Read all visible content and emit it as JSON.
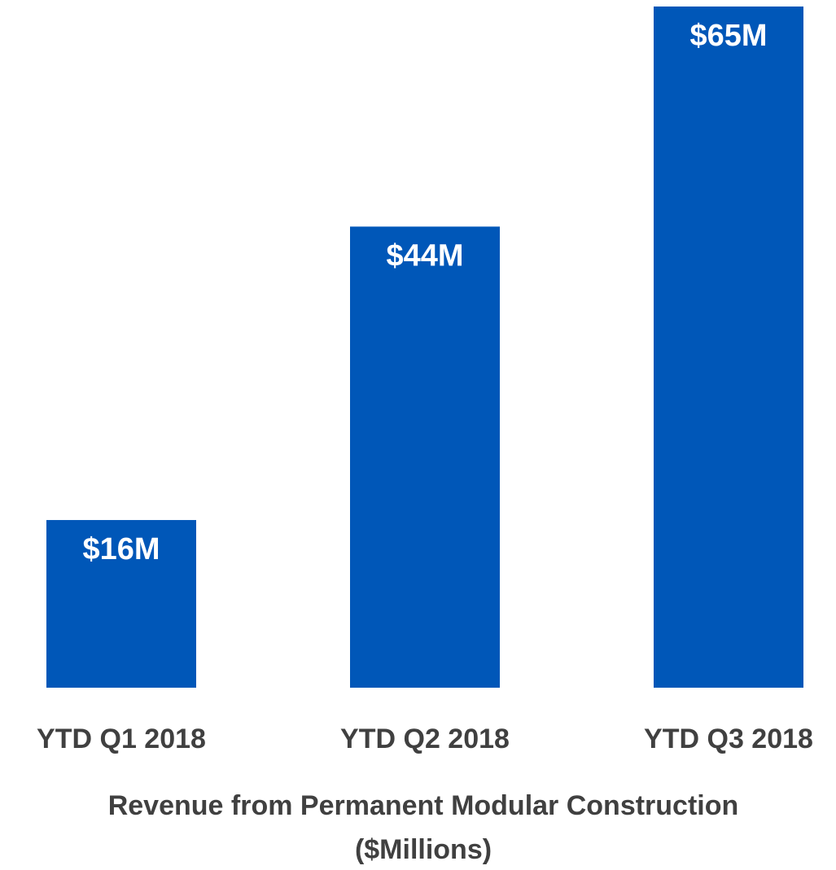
{
  "chart_data": {
    "type": "bar",
    "categories": [
      "YTD Q1 2018",
      "YTD Q2 2018",
      "YTD Q3 2018"
    ],
    "values": [
      16,
      44,
      65
    ],
    "value_labels": [
      "$16M",
      "$44M",
      "$65M"
    ],
    "color": "#0057b8",
    "x_label": [
      "Revenue from Permanent Modular Construction",
      "($Millions)"
    ],
    "ylim": [
      0,
      65
    ],
    "grid": false
  }
}
